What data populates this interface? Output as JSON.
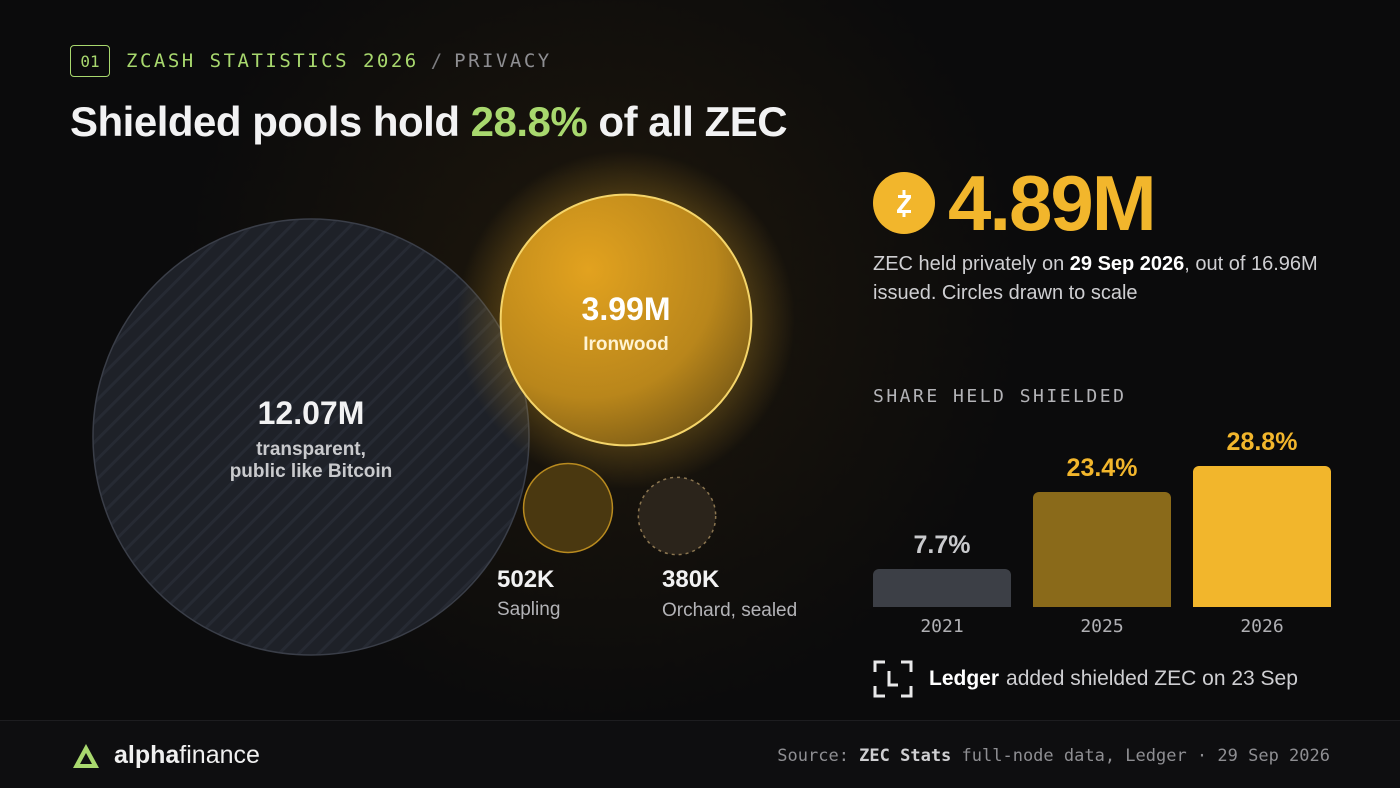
{
  "header": {
    "badge": "01",
    "kicker": "ZCASH STATISTICS 2026",
    "separator": "/",
    "section": "PRIVACY"
  },
  "headline": {
    "before": "Shielded pools hold ",
    "highlight": "28.8%",
    "after": " of all ZEC"
  },
  "colors": {
    "accent_green": "#a8d86e",
    "zec_gold": "#f2b62c",
    "dark_gold": "#8a6a1a",
    "slate": "#3c3f46"
  },
  "bubbles": [
    {
      "value": "12.07M",
      "label_lines": [
        "transparent,",
        "public like Bitcoin"
      ]
    },
    {
      "value": "3.99M",
      "label_lines": [
        "Ironwood"
      ]
    },
    {
      "value": "502K",
      "label_lines": [
        "Sapling"
      ]
    },
    {
      "value": "380K",
      "label_lines": [
        "Orchard, sealed"
      ]
    }
  ],
  "summary": {
    "coin_icon": "zec-coin-icon",
    "big_number": "4.89M",
    "desc_prefix": "ZEC held privately on ",
    "desc_date": "29 Sep 2026",
    "desc_suffix": ", out of 16.96M issued. Circles drawn to scale"
  },
  "chart_data": [
    {
      "type": "bubble",
      "values": [
        12.07,
        3.99,
        0.502,
        0.38
      ],
      "value_labels": [
        "12.07M",
        "3.99M",
        "502K",
        "380K"
      ],
      "categories": [
        "transparent, public like Bitcoin",
        "Ironwood",
        "Sapling",
        "Orchard, sealed"
      ],
      "title": "",
      "note": "Circles drawn to scale"
    },
    {
      "type": "bar",
      "title": "SHARE HELD SHIELDED",
      "categories": [
        "2021",
        "2025",
        "2026"
      ],
      "values": [
        7.7,
        23.4,
        28.8
      ],
      "value_labels": [
        "7.7%",
        "23.4%",
        "28.8%"
      ],
      "bar_colors": [
        "#3c3f46",
        "#8a6a1a",
        "#f2b62c"
      ],
      "label_colors": [
        "#c9cacd",
        "#f2b62c",
        "#f2b62c"
      ],
      "ylim": [
        0,
        28.8
      ],
      "grid": false
    }
  ],
  "ledger": {
    "icon": "ledger-icon",
    "name": "Ledger",
    "text": "added shielded ZEC on 23 Sep"
  },
  "footer": {
    "brand_bold": "alpha",
    "brand_rest": "finance",
    "source_prefix": "Source: ",
    "source_name": "ZEC Stats",
    "source_rest": " full-node data, Ledger · 29 Sep 2026"
  }
}
